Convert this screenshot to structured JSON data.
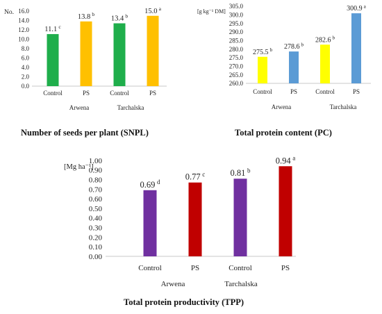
{
  "chart_data": [
    {
      "type": "bar",
      "caption": "Number of seeds per plant (SNPL)",
      "ylabel": "No.",
      "ylim": [
        0,
        16
      ],
      "ytick_step": 2,
      "ytick_decimals": 1,
      "yticks": [
        "0.0",
        "2.0",
        "4.0",
        "6.0",
        "8.0",
        "10.0",
        "12.0",
        "14.0",
        "16.0"
      ],
      "grid": false,
      "categories": [
        "Control",
        "PS",
        "Control",
        "PS"
      ],
      "groups": [
        "Arwena",
        "Tarchalska"
      ],
      "values": [
        11.1,
        13.8,
        13.4,
        15.0
      ],
      "value_labels": [
        "11.1",
        "13.8",
        "13.4",
        "15.0"
      ],
      "letters": [
        "c",
        "b",
        "b",
        "a"
      ],
      "colors": [
        "#1fae4b",
        "#ffc000",
        "#1fae4b",
        "#ffc000"
      ]
    },
    {
      "type": "bar",
      "caption": "Total protein content (PC)",
      "ylabel": "[g kg⁻¹ DM]",
      "ylim": [
        260,
        305
      ],
      "ytick_step": 5,
      "ytick_decimals": 1,
      "yticks": [
        "260.0",
        "265.0",
        "270.0",
        "275.0",
        "280.0",
        "285.0",
        "290.0",
        "295.0",
        "300.0",
        "305.0"
      ],
      "grid": false,
      "categories": [
        "Control",
        "PS",
        "Control",
        "PS"
      ],
      "groups": [
        "Arwena",
        "Tarchalska"
      ],
      "values": [
        275.5,
        278.6,
        282.6,
        300.9
      ],
      "value_labels": [
        "275.5",
        "278.6",
        "282.6",
        "300.9"
      ],
      "letters": [
        "b",
        "b",
        "b",
        "a"
      ],
      "colors": [
        "#ffff00",
        "#5b9bd5",
        "#ffff00",
        "#5b9bd5"
      ]
    },
    {
      "type": "bar",
      "caption": "Total protein productivity (TPP)",
      "ylabel": "[Mg ha⁻¹]",
      "ylim": [
        0,
        1
      ],
      "ytick_step": 0.1,
      "ytick_decimals": 2,
      "yticks": [
        "0.00",
        "0.10",
        "0.20",
        "0.30",
        "0.40",
        "0.50",
        "0.60",
        "0.70",
        "0.80",
        "0.90",
        "1.00"
      ],
      "grid": false,
      "categories": [
        "Control",
        "PS",
        "Control",
        "PS"
      ],
      "groups": [
        "Arwena",
        "Tarchalska"
      ],
      "values": [
        0.69,
        0.77,
        0.81,
        0.94
      ],
      "value_labels": [
        "0.69",
        "0.77",
        "0.81",
        "0.94"
      ],
      "letters": [
        "d",
        "c",
        "b",
        "a"
      ],
      "colors": [
        "#7030a0",
        "#c00000",
        "#7030a0",
        "#c00000"
      ]
    }
  ]
}
